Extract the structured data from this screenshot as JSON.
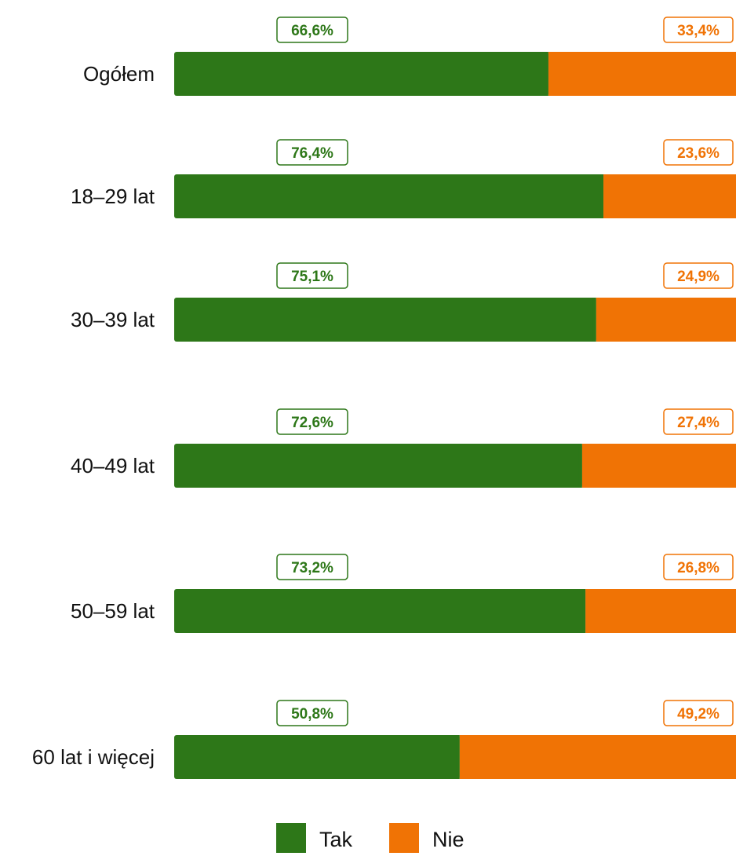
{
  "chart_data": {
    "type": "bar",
    "stacked": true,
    "orientation": "horizontal",
    "percent": true,
    "categories": [
      "Ogółem",
      "18–29 lat",
      "30–39 lat",
      "40–49 lat",
      "50–59 lat",
      "60 lat i więcej"
    ],
    "series": [
      {
        "name": "Tak",
        "color": "#2d7718",
        "values": [
          66.6,
          76.4,
          75.1,
          72.6,
          73.2,
          50.8
        ],
        "labels": [
          "66,6%",
          "76,4%",
          "75,1%",
          "72,6%",
          "73,2%",
          "50,8%"
        ]
      },
      {
        "name": "Nie",
        "color": "#f07305",
        "values": [
          33.4,
          23.6,
          24.9,
          27.4,
          26.8,
          49.2
        ],
        "labels": [
          "33,4%",
          "23,6%",
          "24,9%",
          "27,4%",
          "26,8%",
          "49,2%"
        ]
      }
    ],
    "xlim": [
      0,
      100
    ],
    "grid": false,
    "legend": "bottom-center"
  }
}
